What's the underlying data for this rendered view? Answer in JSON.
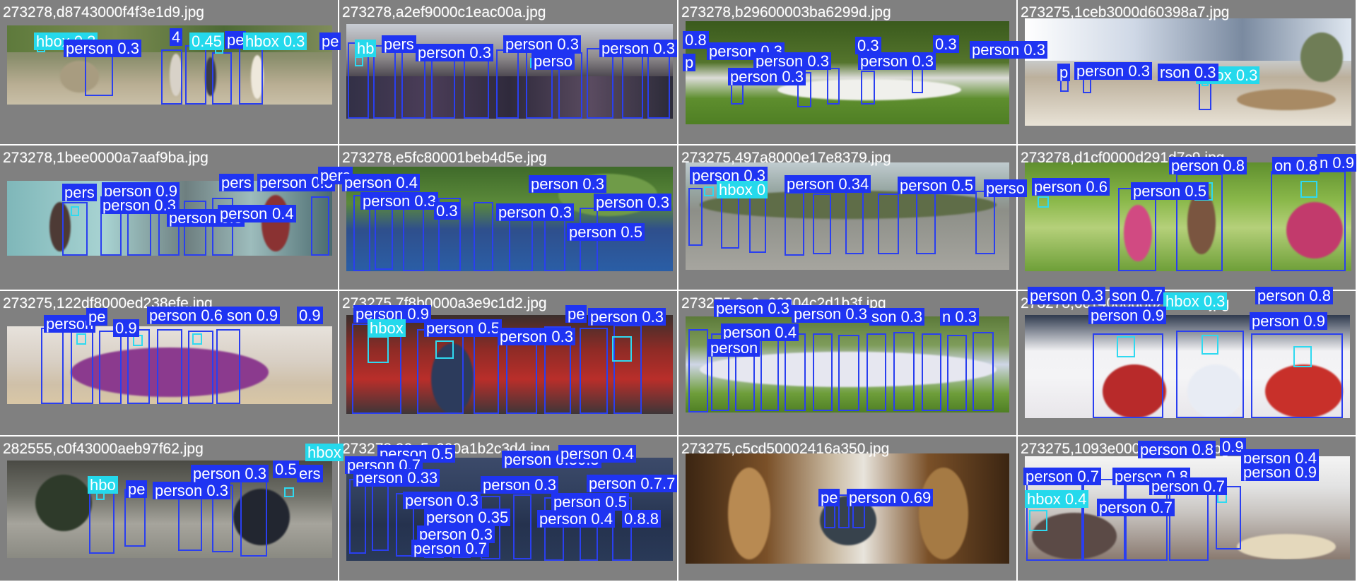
{
  "colors": {
    "tile_bg": "#808080",
    "person_box": "#2a3ff0",
    "person_label_bg": "#1f34f2",
    "head_box": "#2fd9f0",
    "head_label_bg": "#25d9ec",
    "text": "#ffffff"
  },
  "tiles": [
    {
      "filename": "273278,d8743000f4f3e1d9.jpg",
      "labels": [
        "hbox 0.3",
        "person 0.3",
        "4",
        "0.45",
        "pe",
        "hbox 0.3",
        "pe"
      ]
    },
    {
      "filename": "273278,a2ef9000c1eac00a.jpg",
      "labels": [
        "hb",
        "pers",
        "person 0.3",
        "person 0.3",
        "person 0.3",
        "perso",
        "0.8"
      ]
    },
    {
      "filename": "273278,b29600003ba6299d.jpg",
      "labels": [
        "p",
        "person 0.3",
        "person 0.3",
        "person 0.3",
        "person 0.3",
        "person 0.3",
        "0.3",
        "0.3"
      ]
    },
    {
      "filename": "273275,1ceb3000d60398a7.jpg",
      "labels": [
        "person 0.3",
        "hbox 0.3",
        "p",
        "rson 0.3"
      ]
    },
    {
      "filename": "273278,1bee0000a7aaf9ba.jpg",
      "labels": [
        "pers",
        "person 0.9",
        "pers",
        "person 0.3",
        "person 0.3",
        "person 0.3",
        "person 0.7",
        "0.4",
        "pers"
      ]
    },
    {
      "filename": "273278,e5fc80001beb4d5e.jpg",
      "labels": [
        "person 0.4",
        "person 0.3",
        "person 0.3",
        "person 0.3",
        "person 0.3",
        "person 0.5",
        "0.3"
      ]
    },
    {
      "filename": "273275,497a8000e17e8379.jpg",
      "labels": [
        "person 0.3",
        "hbox 0",
        "person 0.34",
        "person 0.5",
        "perso"
      ]
    },
    {
      "filename": "273278,d1cf0000d291d7c9.jpg",
      "labels": [
        "person 0.6",
        "person 0.5",
        "person 0.8",
        "on 0.8",
        "n 0.9"
      ]
    },
    {
      "filename": "273275,122df8000ed238efe.jpg",
      "labels": [
        "person",
        "pe",
        "person 0.6",
        "son 0.9",
        "0.9",
        "0.9"
      ]
    },
    {
      "filename": "273275,7f8b0000a3e9c1d2.jpg",
      "labels": [
        "person 0.9",
        "hbox",
        "person 0.5",
        "person 0.3",
        "person 0.3",
        "pe"
      ]
    },
    {
      "filename": "273275,8a9e00004c2d1b3f.jpg",
      "labels": [
        "person 0.3",
        "person 0.3",
        "person 0.4",
        "son 0.3",
        "n 0.3",
        "person"
      ]
    },
    {
      "filename": "273278,6c14000d8b2e7a91.jpg",
      "labels": [
        "person 0.3",
        "son 0.7",
        "hbox 0.3",
        "person 0.8",
        "person 0.9",
        "person 0.9"
      ]
    },
    {
      "filename": "282555,c0f43000aeb97f62.jpg",
      "labels": [
        "hbo",
        "pe",
        "person 0.3",
        "person 0.3",
        "0.5",
        "hbox",
        "ers"
      ]
    },
    {
      "filename": "273278,90e5c000a1b2c3d4.jpg",
      "labels": [
        "person 0.5",
        "person 0.7",
        "person 0.33",
        "person 0.30.3",
        "person 0.4",
        "person 0.3",
        "person 0.3",
        "person 0.35",
        "person 0.4",
        "person 0.3",
        "person 0.7",
        "person 0.5",
        "person 0.7.7",
        "0.8.8"
      ]
    },
    {
      "filename": "273275,c5cd50002416a350.jpg",
      "labels": [
        "pe",
        "person 0.69"
      ]
    },
    {
      "filename": "273275,1093e000b4c5d6e7.jpg",
      "labels": [
        "person 0.8",
        "0.9",
        "person 0.4",
        "person 0.7",
        "person 0.8",
        "person 0.9",
        "person 0.7",
        "hbox 0.4",
        "person 0.7"
      ]
    }
  ]
}
